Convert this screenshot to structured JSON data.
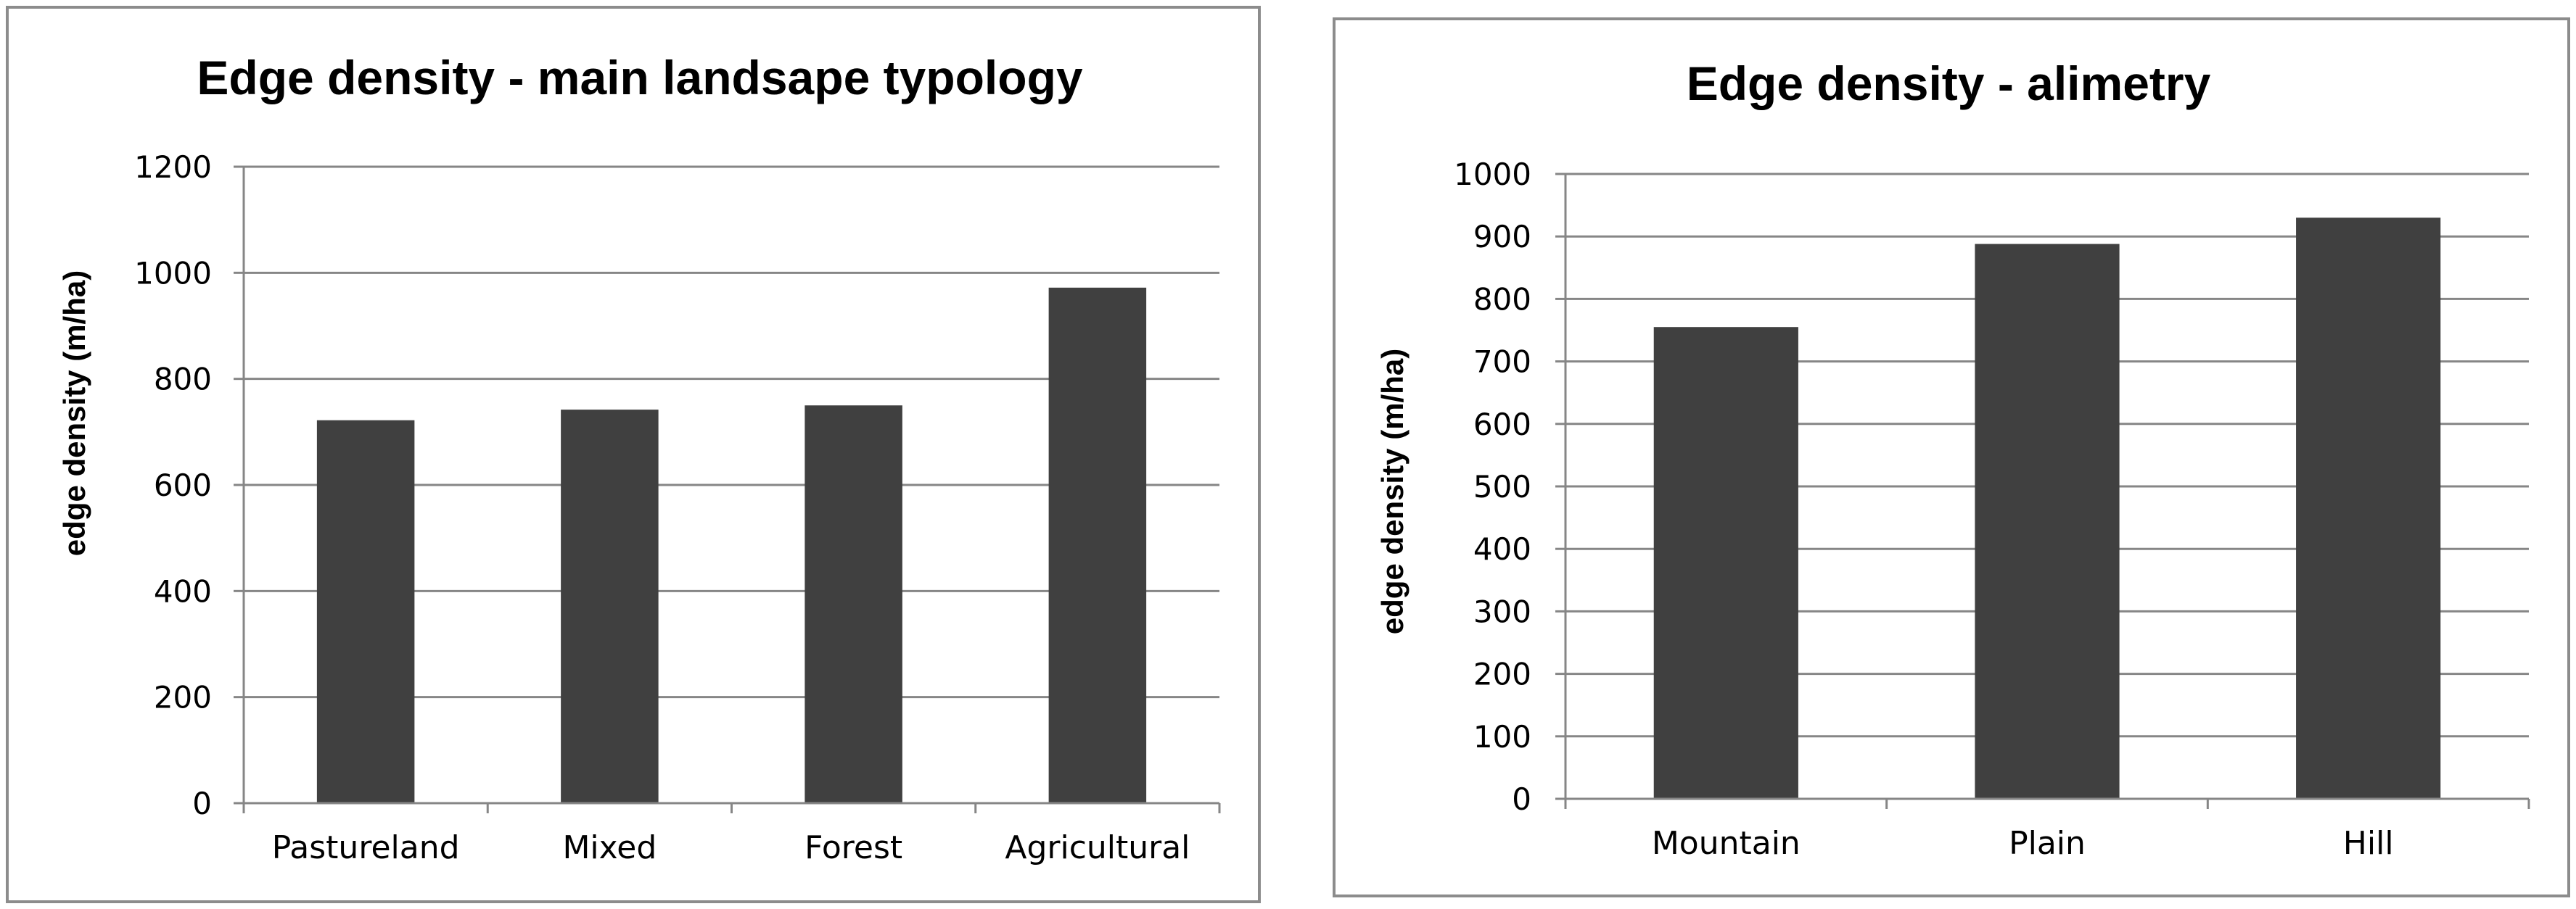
{
  "chart_data": [
    {
      "type": "bar",
      "title": "Edge density - main landsape typology",
      "xlabel": "",
      "ylabel": "edge density (m/ha)",
      "categories": [
        "Pastureland",
        "Mixed",
        "Forest",
        "Agricultural"
      ],
      "values": [
        722,
        742,
        750,
        972
      ],
      "ylim": [
        0,
        1200
      ],
      "yticks": [
        0,
        200,
        400,
        600,
        800,
        1000,
        1200
      ],
      "grid": true,
      "legend": "none",
      "bar_color": "#404040"
    },
    {
      "type": "bar",
      "title": "Edge density - alimetry",
      "xlabel": "",
      "ylabel": "edge density (m/ha)",
      "categories": [
        "Mountain",
        "Plain",
        "Hill"
      ],
      "values": [
        755,
        888,
        930
      ],
      "ylim": [
        0,
        1000
      ],
      "yticks": [
        0,
        100,
        200,
        300,
        400,
        500,
        600,
        700,
        800,
        900,
        1000
      ],
      "grid": true,
      "legend": "none",
      "bar_color": "#404040"
    }
  ]
}
